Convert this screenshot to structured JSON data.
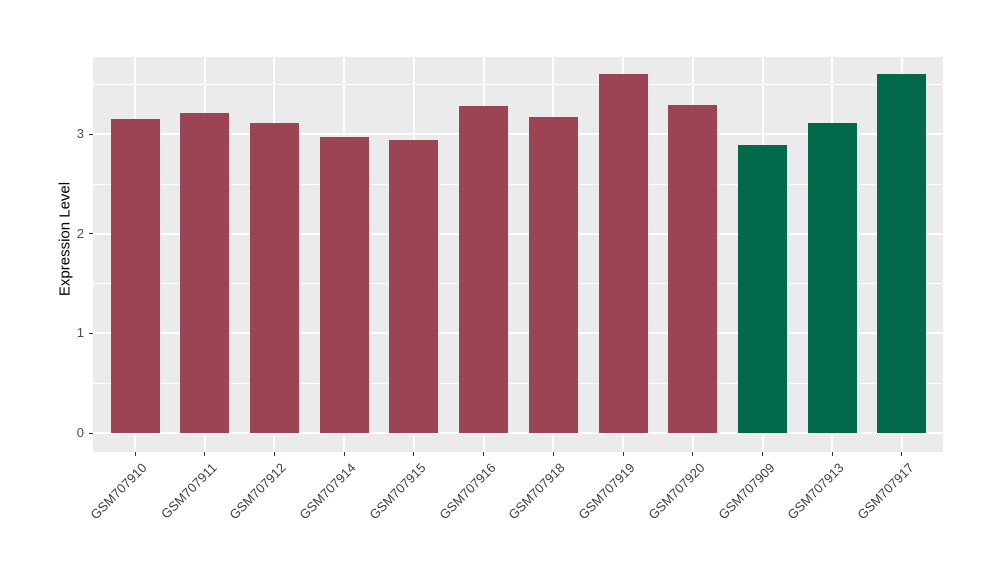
{
  "figure": {
    "background": "#FFFFFF",
    "panel_bg": "#EBEBEB",
    "grid_color": "#FFFFFF",
    "tick_color": "#333333"
  },
  "chart_data": {
    "type": "bar",
    "title": "",
    "xlabel": "",
    "ylabel": "Expression Level",
    "categories": [
      "GSM707910",
      "GSM707911",
      "GSM707912",
      "GSM707914",
      "GSM707915",
      "GSM707916",
      "GSM707918",
      "GSM707919",
      "GSM707920",
      "GSM707909",
      "GSM707913",
      "GSM707917"
    ],
    "values": [
      3.15,
      3.21,
      3.11,
      2.97,
      2.94,
      3.28,
      3.17,
      3.6,
      3.29,
      2.89,
      3.11,
      3.6
    ],
    "bar_colors": [
      "#9B4453",
      "#9B4453",
      "#9B4453",
      "#9B4453",
      "#9B4453",
      "#9B4453",
      "#9B4453",
      "#9B4453",
      "#9B4453",
      "#02694A",
      "#02694A",
      "#02694A"
    ],
    "color_groups": {
      "maroon": "#9B4453",
      "green": "#02694A"
    },
    "ylim": [
      0,
      3.78
    ],
    "yticks": [
      "0",
      "1",
      "2",
      "3"
    ],
    "ytick_values": [
      0,
      1,
      2,
      3
    ],
    "yminor_values": [
      0.5,
      1.5,
      2.5,
      3.5
    ],
    "grid": "horizontal major+minor, vertical major at categories",
    "legend": "none"
  }
}
